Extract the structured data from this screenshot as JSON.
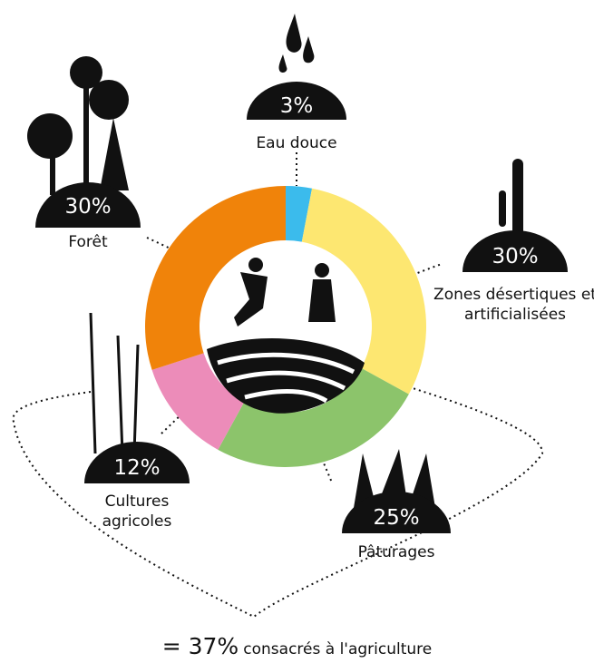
{
  "chart_data": {
    "type": "pie",
    "categories": [
      "Eau douce",
      "Zones désertiques et artificialisées",
      "Pâturages",
      "Cultures agricoles",
      "Forêt"
    ],
    "values": [
      3,
      30,
      25,
      12,
      30
    ],
    "value_labels": [
      "3%",
      "30%",
      "25%",
      "12%",
      "30%"
    ],
    "colors": [
      "#3bbbec",
      "#fde771",
      "#8cc46b",
      "#ec8cb9",
      "#f0830a"
    ],
    "annotation": {
      "total": "= 37%",
      "text": "consacrés à l'agriculture"
    }
  }
}
